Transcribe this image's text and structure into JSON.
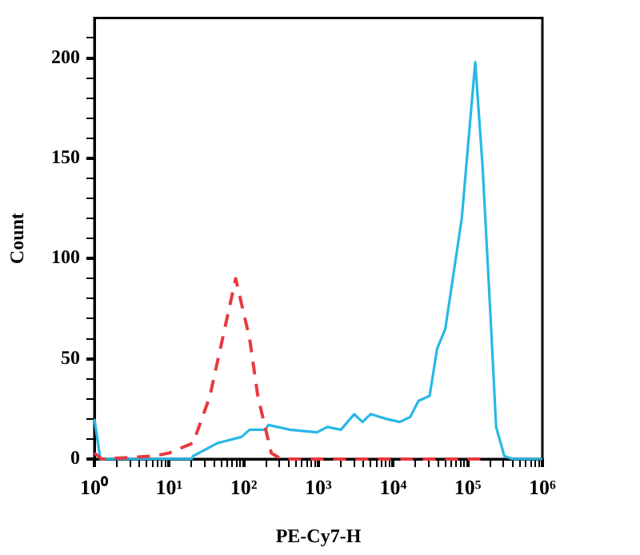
{
  "chart_data": {
    "type": "line",
    "xlabel": "PE-Cy7-H",
    "ylabel": "Count",
    "log": "x",
    "grid": false,
    "legend": false,
    "marker": "none",
    "xlim": [
      1,
      1000000
    ],
    "ylim": [
      0,
      220
    ],
    "xticks": [
      {
        "value": 1,
        "label": "10⁰"
      },
      {
        "value": 2,
        "label": null
      },
      {
        "value": 3,
        "label": null
      },
      {
        "value": 4,
        "label": null
      },
      {
        "value": 5,
        "label": null
      },
      {
        "value": 6,
        "label": null
      },
      {
        "value": 7,
        "label": null
      },
      {
        "value": 8,
        "label": null
      },
      {
        "value": 9,
        "label": null
      },
      {
        "value": 10,
        "label": "10¹"
      },
      {
        "value": 20,
        "label": null
      },
      {
        "value": 30,
        "label": null
      },
      {
        "value": 40,
        "label": null
      },
      {
        "value": 50,
        "label": null
      },
      {
        "value": 60,
        "label": null
      },
      {
        "value": 70,
        "label": null
      },
      {
        "value": 80,
        "label": null
      },
      {
        "value": 90,
        "label": null
      },
      {
        "value": 100,
        "label": "10²"
      },
      {
        "value": 200,
        "label": null
      },
      {
        "value": 300,
        "label": null
      },
      {
        "value": 400,
        "label": null
      },
      {
        "value": 500,
        "label": null
      },
      {
        "value": 600,
        "label": null
      },
      {
        "value": 700,
        "label": null
      },
      {
        "value": 800,
        "label": null
      },
      {
        "value": 900,
        "label": null
      },
      {
        "value": 1000,
        "label": "10³"
      },
      {
        "value": 2000,
        "label": null
      },
      {
        "value": 3000,
        "label": null
      },
      {
        "value": 4000,
        "label": null
      },
      {
        "value": 5000,
        "label": null
      },
      {
        "value": 6000,
        "label": null
      },
      {
        "value": 7000,
        "label": null
      },
      {
        "value": 8000,
        "label": null
      },
      {
        "value": 9000,
        "label": null
      },
      {
        "value": 10000,
        "label": "10⁴"
      },
      {
        "value": 20000,
        "label": null
      },
      {
        "value": 30000,
        "label": null
      },
      {
        "value": 40000,
        "label": null
      },
      {
        "value": 50000,
        "label": null
      },
      {
        "value": 60000,
        "label": null
      },
      {
        "value": 70000,
        "label": null
      },
      {
        "value": 80000,
        "label": null
      },
      {
        "value": 90000,
        "label": null
      },
      {
        "value": 100000,
        "label": "10⁵"
      },
      {
        "value": 200000,
        "label": null
      },
      {
        "value": 300000,
        "label": null
      },
      {
        "value": 400000,
        "label": null
      },
      {
        "value": 500000,
        "label": null
      },
      {
        "value": 600000,
        "label": null
      },
      {
        "value": 700000,
        "label": null
      },
      {
        "value": 800000,
        "label": null
      },
      {
        "value": 900000,
        "label": null
      },
      {
        "value": 1000000,
        "label": "10⁶"
      }
    ],
    "yticks": [
      0,
      {
        "value": 10,
        "label": null
      },
      {
        "value": 20,
        "label": null
      },
      {
        "value": 30,
        "label": null
      },
      {
        "value": 40,
        "label": null
      },
      50,
      {
        "value": 60,
        "label": null
      },
      {
        "value": 70,
        "label": null
      },
      {
        "value": 80,
        "label": null
      },
      {
        "value": 90,
        "label": null
      },
      100,
      {
        "value": 110,
        "label": null
      },
      {
        "value": 120,
        "label": null
      },
      {
        "value": 130,
        "label": null
      },
      {
        "value": 140,
        "label": null
      },
      150,
      {
        "value": 160,
        "label": null
      },
      {
        "value": 170,
        "label": null
      },
      {
        "value": 180,
        "label": null
      },
      {
        "value": 190,
        "label": null
      },
      200,
      {
        "value": 210,
        "label": null
      }
    ],
    "series": [
      {
        "color": "#e8393f",
        "line_style": "dashed",
        "x": [
          1,
          1.26,
          6.2,
          10,
          21,
          35,
          52,
          78,
          120,
          155,
          234,
          316,
          158000
        ],
        "values": [
          3,
          0,
          1.5,
          3,
          8,
          31,
          60,
          90,
          60,
          31,
          3,
          0,
          0
        ]
      },
      {
        "color": "#27b8e6",
        "line_style": "solid",
        "x": [
          1,
          1.2,
          20,
          21,
          45,
          93,
          120,
          195,
          214,
          417,
          955,
          1320,
          2000,
          3020,
          3890,
          5010,
          8130,
          12300,
          17000,
          21900,
          30900,
          38900,
          50100,
          83200,
          126000,
          158000,
          204000,
          240000,
          309000,
          400000,
          1000000
        ],
        "values": [
          20,
          0,
          0,
          1.5,
          8,
          11,
          14.6,
          14.6,
          17,
          14.6,
          13.3,
          16,
          14.6,
          22.4,
          18.5,
          22.4,
          20,
          18.5,
          21,
          29,
          31.5,
          55,
          65,
          120,
          198,
          146,
          68,
          16,
          1.5,
          0,
          0
        ]
      }
    ]
  }
}
